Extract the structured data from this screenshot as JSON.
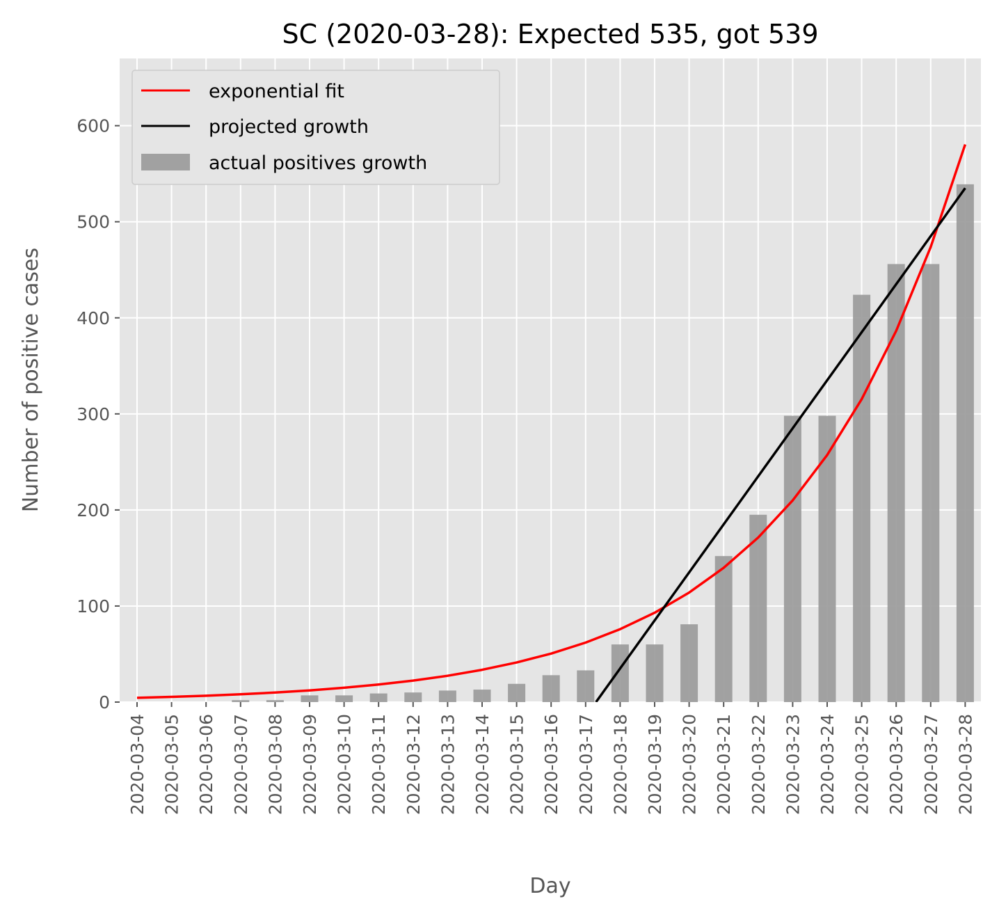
{
  "chart_data": {
    "type": "bar",
    "title": "SC (2020-03-28): Expected 535, got 539",
    "xlabel": "Day",
    "ylabel": "Number of positive cases",
    "categories": [
      "2020-03-04",
      "2020-03-05",
      "2020-03-06",
      "2020-03-07",
      "2020-03-08",
      "2020-03-09",
      "2020-03-10",
      "2020-03-11",
      "2020-03-12",
      "2020-03-13",
      "2020-03-14",
      "2020-03-15",
      "2020-03-16",
      "2020-03-17",
      "2020-03-18",
      "2020-03-19",
      "2020-03-20",
      "2020-03-21",
      "2020-03-22",
      "2020-03-23",
      "2020-03-24",
      "2020-03-25",
      "2020-03-26",
      "2020-03-27",
      "2020-03-28"
    ],
    "ylim": [
      0,
      670
    ],
    "yticks": [
      0,
      100,
      200,
      300,
      400,
      500,
      600
    ],
    "grid": true,
    "legend_position": "top-left",
    "series": [
      {
        "name": "exponential fit",
        "type": "line",
        "color": "#ff0000",
        "values": [
          4.4,
          5.4,
          6.6,
          8.1,
          9.9,
          12.1,
          14.9,
          18.3,
          22.4,
          27.4,
          33.6,
          41.2,
          50.5,
          61.9,
          75.9,
          93.0,
          114.0,
          139.7,
          171.2,
          209.9,
          257.2,
          315.3,
          386.4,
          473.6,
          580.5
        ]
      },
      {
        "name": "projected growth",
        "type": "line",
        "color": "#000000",
        "points": [
          [
            13.3,
            0
          ],
          [
            24,
            535
          ]
        ]
      },
      {
        "name": "actual positives growth",
        "type": "bar",
        "color": "#999999",
        "values": [
          0,
          0,
          0,
          2,
          2,
          7,
          7,
          9,
          10,
          12,
          13,
          19,
          28,
          33,
          60,
          60,
          81,
          152,
          195,
          298,
          298,
          424,
          456,
          456,
          539
        ]
      }
    ]
  }
}
